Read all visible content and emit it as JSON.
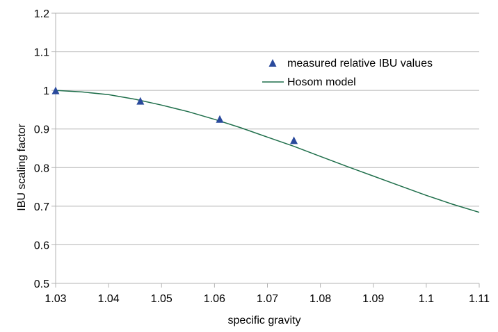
{
  "chart_data": {
    "type": "scatter",
    "title": "",
    "xlabel": "specific gravity",
    "ylabel": "IBU scaling factor",
    "xlim": [
      1.03,
      1.11
    ],
    "ylim": [
      0.5,
      1.2
    ],
    "x_ticks": [
      "1.03",
      "1.04",
      "1.05",
      "1.06",
      "1.07",
      "1.08",
      "1.09",
      "1.1",
      "1.11"
    ],
    "y_ticks": [
      "0.5",
      "0.6",
      "0.7",
      "0.8",
      "0.9",
      "1",
      "1.1",
      "1.2"
    ],
    "grid": "horizontal",
    "legend_position": "top-right",
    "series": [
      {
        "name": "measured relative IBU values",
        "type": "scatter",
        "marker": "triangle",
        "color": "#2a4a9c",
        "x": [
          1.03,
          1.046,
          1.061,
          1.075
        ],
        "y": [
          1.0,
          0.973,
          0.926,
          0.871
        ]
      },
      {
        "name": "Hosom model",
        "type": "line",
        "color": "#1e6e4a",
        "x": [
          1.03,
          1.035,
          1.04,
          1.045,
          1.05,
          1.055,
          1.06,
          1.065,
          1.07,
          1.075,
          1.08,
          1.085,
          1.09,
          1.095,
          1.1,
          1.105,
          1.11
        ],
        "y": [
          1.0,
          0.996,
          0.989,
          0.977,
          0.962,
          0.945,
          0.925,
          0.903,
          0.879,
          0.855,
          0.829,
          0.803,
          0.778,
          0.753,
          0.728,
          0.705,
          0.684
        ]
      }
    ]
  }
}
